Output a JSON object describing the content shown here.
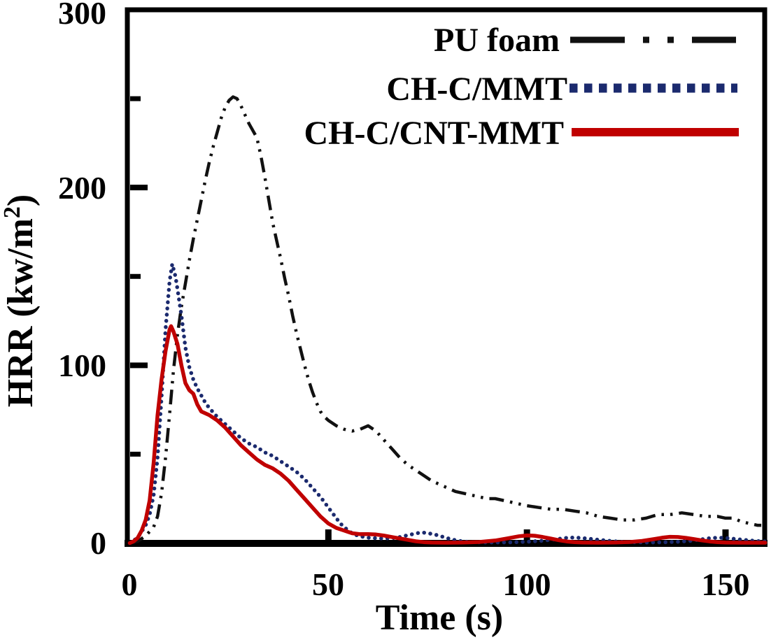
{
  "chart_data": {
    "type": "line",
    "title": "",
    "xlabel": "Time (s)",
    "ylabel_text": "HRR (kw/m2)",
    "ylabel_parts": {
      "main": "HRR (kw/m",
      "sup": "2",
      "close": ")"
    },
    "xlim": [
      0,
      160
    ],
    "ylim": [
      0,
      300
    ],
    "xticks": [
      0,
      50,
      100,
      150
    ],
    "xtick_labels": [
      "0",
      "50",
      "100",
      "150"
    ],
    "yticks_major": [
      0,
      100,
      200,
      300
    ],
    "ytick_labels": [
      "0",
      "100",
      "200",
      "300"
    ],
    "yticks_minor": [
      50,
      150,
      250
    ],
    "grid": false,
    "legend_position": "top-right-inside",
    "axis_color": "#000000",
    "series": [
      {
        "name": "PU foam",
        "color": "#111111",
        "line_style": "dash-dot-dot",
        "peak": {
          "t": 26,
          "hrr": 251
        },
        "points": [
          [
            0,
            0
          ],
          [
            2,
            1
          ],
          [
            4,
            4
          ],
          [
            6,
            9
          ],
          [
            7,
            15
          ],
          [
            8,
            28
          ],
          [
            9,
            48
          ],
          [
            10,
            72
          ],
          [
            11,
            97
          ],
          [
            12,
            117
          ],
          [
            13,
            133
          ],
          [
            14,
            146
          ],
          [
            15,
            159
          ],
          [
            16,
            171
          ],
          [
            17,
            182
          ],
          [
            18,
            193
          ],
          [
            19,
            204
          ],
          [
            20,
            214
          ],
          [
            21,
            223
          ],
          [
            22,
            231
          ],
          [
            23,
            239
          ],
          [
            24,
            245
          ],
          [
            25,
            249
          ],
          [
            26,
            251
          ],
          [
            27,
            250
          ],
          [
            28,
            246
          ],
          [
            29,
            241
          ],
          [
            30,
            236
          ],
          [
            31,
            232
          ],
          [
            32,
            228
          ],
          [
            33,
            218
          ],
          [
            34,
            206
          ],
          [
            35,
            193
          ],
          [
            36,
            180
          ],
          [
            37,
            170
          ],
          [
            38,
            160
          ],
          [
            39,
            149
          ],
          [
            40,
            139
          ],
          [
            41,
            128
          ],
          [
            42,
            118
          ],
          [
            43,
            109
          ],
          [
            44,
            100
          ],
          [
            45,
            92
          ],
          [
            46,
            85
          ],
          [
            47,
            79
          ],
          [
            48,
            74
          ],
          [
            49,
            71
          ],
          [
            50,
            69
          ],
          [
            52,
            66
          ],
          [
            54,
            64
          ],
          [
            56,
            63
          ],
          [
            58,
            64
          ],
          [
            60,
            66
          ],
          [
            62,
            63
          ],
          [
            64,
            58
          ],
          [
            66,
            53
          ],
          [
            68,
            48
          ],
          [
            70,
            44
          ],
          [
            72,
            41
          ],
          [
            74,
            38
          ],
          [
            76,
            35
          ],
          [
            78,
            33
          ],
          [
            80,
            31
          ],
          [
            82,
            29
          ],
          [
            84,
            28
          ],
          [
            86,
            27
          ],
          [
            88,
            26
          ],
          [
            90,
            25
          ],
          [
            92,
            25
          ],
          [
            94,
            24
          ],
          [
            96,
            23
          ],
          [
            98,
            22
          ],
          [
            100,
            21
          ],
          [
            103,
            20
          ],
          [
            106,
            19
          ],
          [
            109,
            19
          ],
          [
            112,
            18
          ],
          [
            115,
            17
          ],
          [
            118,
            15
          ],
          [
            121,
            14
          ],
          [
            124,
            13
          ],
          [
            127,
            13
          ],
          [
            130,
            14
          ],
          [
            133,
            16
          ],
          [
            136,
            16
          ],
          [
            139,
            17
          ],
          [
            142,
            16
          ],
          [
            145,
            15
          ],
          [
            148,
            15
          ],
          [
            150,
            14
          ],
          [
            152,
            14
          ],
          [
            154,
            12
          ],
          [
            156,
            11
          ],
          [
            158,
            10
          ],
          [
            159,
            10
          ]
        ]
      },
      {
        "name": "CH-C/MMT",
        "color": "#1b2a6e",
        "line_style": "dotted",
        "peak": {
          "t": 10.7,
          "hrr": 157
        },
        "points": [
          [
            0,
            0
          ],
          [
            2,
            3
          ],
          [
            4,
            10
          ],
          [
            5,
            16
          ],
          [
            6,
            27
          ],
          [
            7,
            48
          ],
          [
            8,
            82
          ],
          [
            9,
            120
          ],
          [
            10,
            147
          ],
          [
            10.7,
            157
          ],
          [
            11.5,
            150
          ],
          [
            12,
            143
          ],
          [
            13,
            128
          ],
          [
            14,
            110
          ],
          [
            15,
            99
          ],
          [
            16,
            92
          ],
          [
            17,
            87
          ],
          [
            18,
            83
          ],
          [
            19,
            79
          ],
          [
            20,
            76
          ],
          [
            22,
            71
          ],
          [
            24,
            67
          ],
          [
            26,
            63
          ],
          [
            28,
            59
          ],
          [
            30,
            56
          ],
          [
            32,
            54
          ],
          [
            34,
            51
          ],
          [
            36,
            49
          ],
          [
            38,
            46
          ],
          [
            40,
            43
          ],
          [
            42,
            40
          ],
          [
            44,
            36
          ],
          [
            46,
            31
          ],
          [
            48,
            26
          ],
          [
            50,
            20
          ],
          [
            51,
            17
          ],
          [
            52,
            14
          ],
          [
            53,
            11
          ],
          [
            54,
            9
          ],
          [
            55,
            7
          ],
          [
            56,
            5.5
          ],
          [
            57,
            4.5
          ],
          [
            58,
            3.8
          ],
          [
            60,
            3
          ],
          [
            62,
            2.7
          ],
          [
            64,
            2.5
          ],
          [
            66,
            2.7
          ],
          [
            68,
            3.4
          ],
          [
            70,
            4.4
          ],
          [
            72,
            5.4
          ],
          [
            73.5,
            6
          ],
          [
            75,
            5.6
          ],
          [
            77,
            4.7
          ],
          [
            79,
            3.4
          ],
          [
            81,
            2.1
          ],
          [
            83,
            1.2
          ],
          [
            85,
            0.7
          ],
          [
            88,
            0.4
          ],
          [
            92,
            0.3
          ],
          [
            96,
            0.4
          ],
          [
            100,
            0.7
          ],
          [
            104,
            1.3
          ],
          [
            107,
            2.1
          ],
          [
            110,
            2.9
          ],
          [
            112,
            3.1
          ],
          [
            114,
            2.8
          ],
          [
            117,
            2.1
          ],
          [
            120,
            1.4
          ],
          [
            123,
            0.8
          ],
          [
            126,
            0.5
          ],
          [
            130,
            0.3
          ],
          [
            134,
            0.4
          ],
          [
            138,
            0.7
          ],
          [
            141,
            1.2
          ],
          [
            144,
            2.1
          ],
          [
            146,
            2.7
          ],
          [
            148,
            3
          ],
          [
            150,
            2.9
          ],
          [
            152,
            2.4
          ],
          [
            155,
            1.7
          ],
          [
            158,
            1.1
          ],
          [
            160,
            0.9
          ]
        ]
      },
      {
        "name": "CH-C/CNT-MMT",
        "color": "#c00000",
        "line_style": "solid",
        "peak": {
          "t": 10.4,
          "hrr": 122
        },
        "points": [
          [
            0,
            0
          ],
          [
            1,
            1
          ],
          [
            2,
            3
          ],
          [
            3,
            7
          ],
          [
            4,
            13
          ],
          [
            5,
            24
          ],
          [
            6,
            45
          ],
          [
            7,
            72
          ],
          [
            8,
            92
          ],
          [
            9,
            108
          ],
          [
            10,
            120
          ],
          [
            10.4,
            122
          ],
          [
            11,
            119
          ],
          [
            12,
            112
          ],
          [
            13,
            100
          ],
          [
            14,
            90
          ],
          [
            15,
            86
          ],
          [
            16,
            84
          ],
          [
            17,
            78
          ],
          [
            18,
            74
          ],
          [
            20,
            72
          ],
          [
            22,
            69
          ],
          [
            24,
            65
          ],
          [
            26,
            60
          ],
          [
            28,
            55
          ],
          [
            30,
            51
          ],
          [
            32,
            47
          ],
          [
            34,
            44
          ],
          [
            36,
            42
          ],
          [
            38,
            39
          ],
          [
            40,
            35
          ],
          [
            42,
            30
          ],
          [
            44,
            25
          ],
          [
            46,
            20
          ],
          [
            48,
            15
          ],
          [
            50,
            11
          ],
          [
            52,
            8.5
          ],
          [
            54,
            7
          ],
          [
            56,
            5.5
          ],
          [
            58,
            5
          ],
          [
            60,
            5
          ],
          [
            62,
            4.8
          ],
          [
            64,
            4.2
          ],
          [
            66,
            3.4
          ],
          [
            68,
            2.6
          ],
          [
            70,
            1.8
          ],
          [
            72,
            1
          ],
          [
            74,
            0.5
          ],
          [
            76,
            0.3
          ],
          [
            80,
            0.2
          ],
          [
            84,
            0.3
          ],
          [
            88,
            0.6
          ],
          [
            92,
            1.4
          ],
          [
            95,
            2.6
          ],
          [
            98,
            3.8
          ],
          [
            100,
            4.3
          ],
          [
            102,
            4.1
          ],
          [
            104,
            3.4
          ],
          [
            106,
            2.5
          ],
          [
            108,
            1.6
          ],
          [
            110,
            0.9
          ],
          [
            112,
            0.5
          ],
          [
            114,
            0.3
          ],
          [
            118,
            0.2
          ],
          [
            122,
            0.3
          ],
          [
            126,
            0.6
          ],
          [
            129,
            1.2
          ],
          [
            132,
            2.2
          ],
          [
            134,
            3
          ],
          [
            136,
            3.5
          ],
          [
            138,
            3.4
          ],
          [
            140,
            2.9
          ],
          [
            142,
            2.2
          ],
          [
            144,
            1.5
          ],
          [
            146,
            0.9
          ],
          [
            148,
            0.5
          ],
          [
            150,
            0.3
          ],
          [
            154,
            0.2
          ],
          [
            158,
            0.2
          ],
          [
            160,
            0.2
          ]
        ]
      }
    ]
  }
}
